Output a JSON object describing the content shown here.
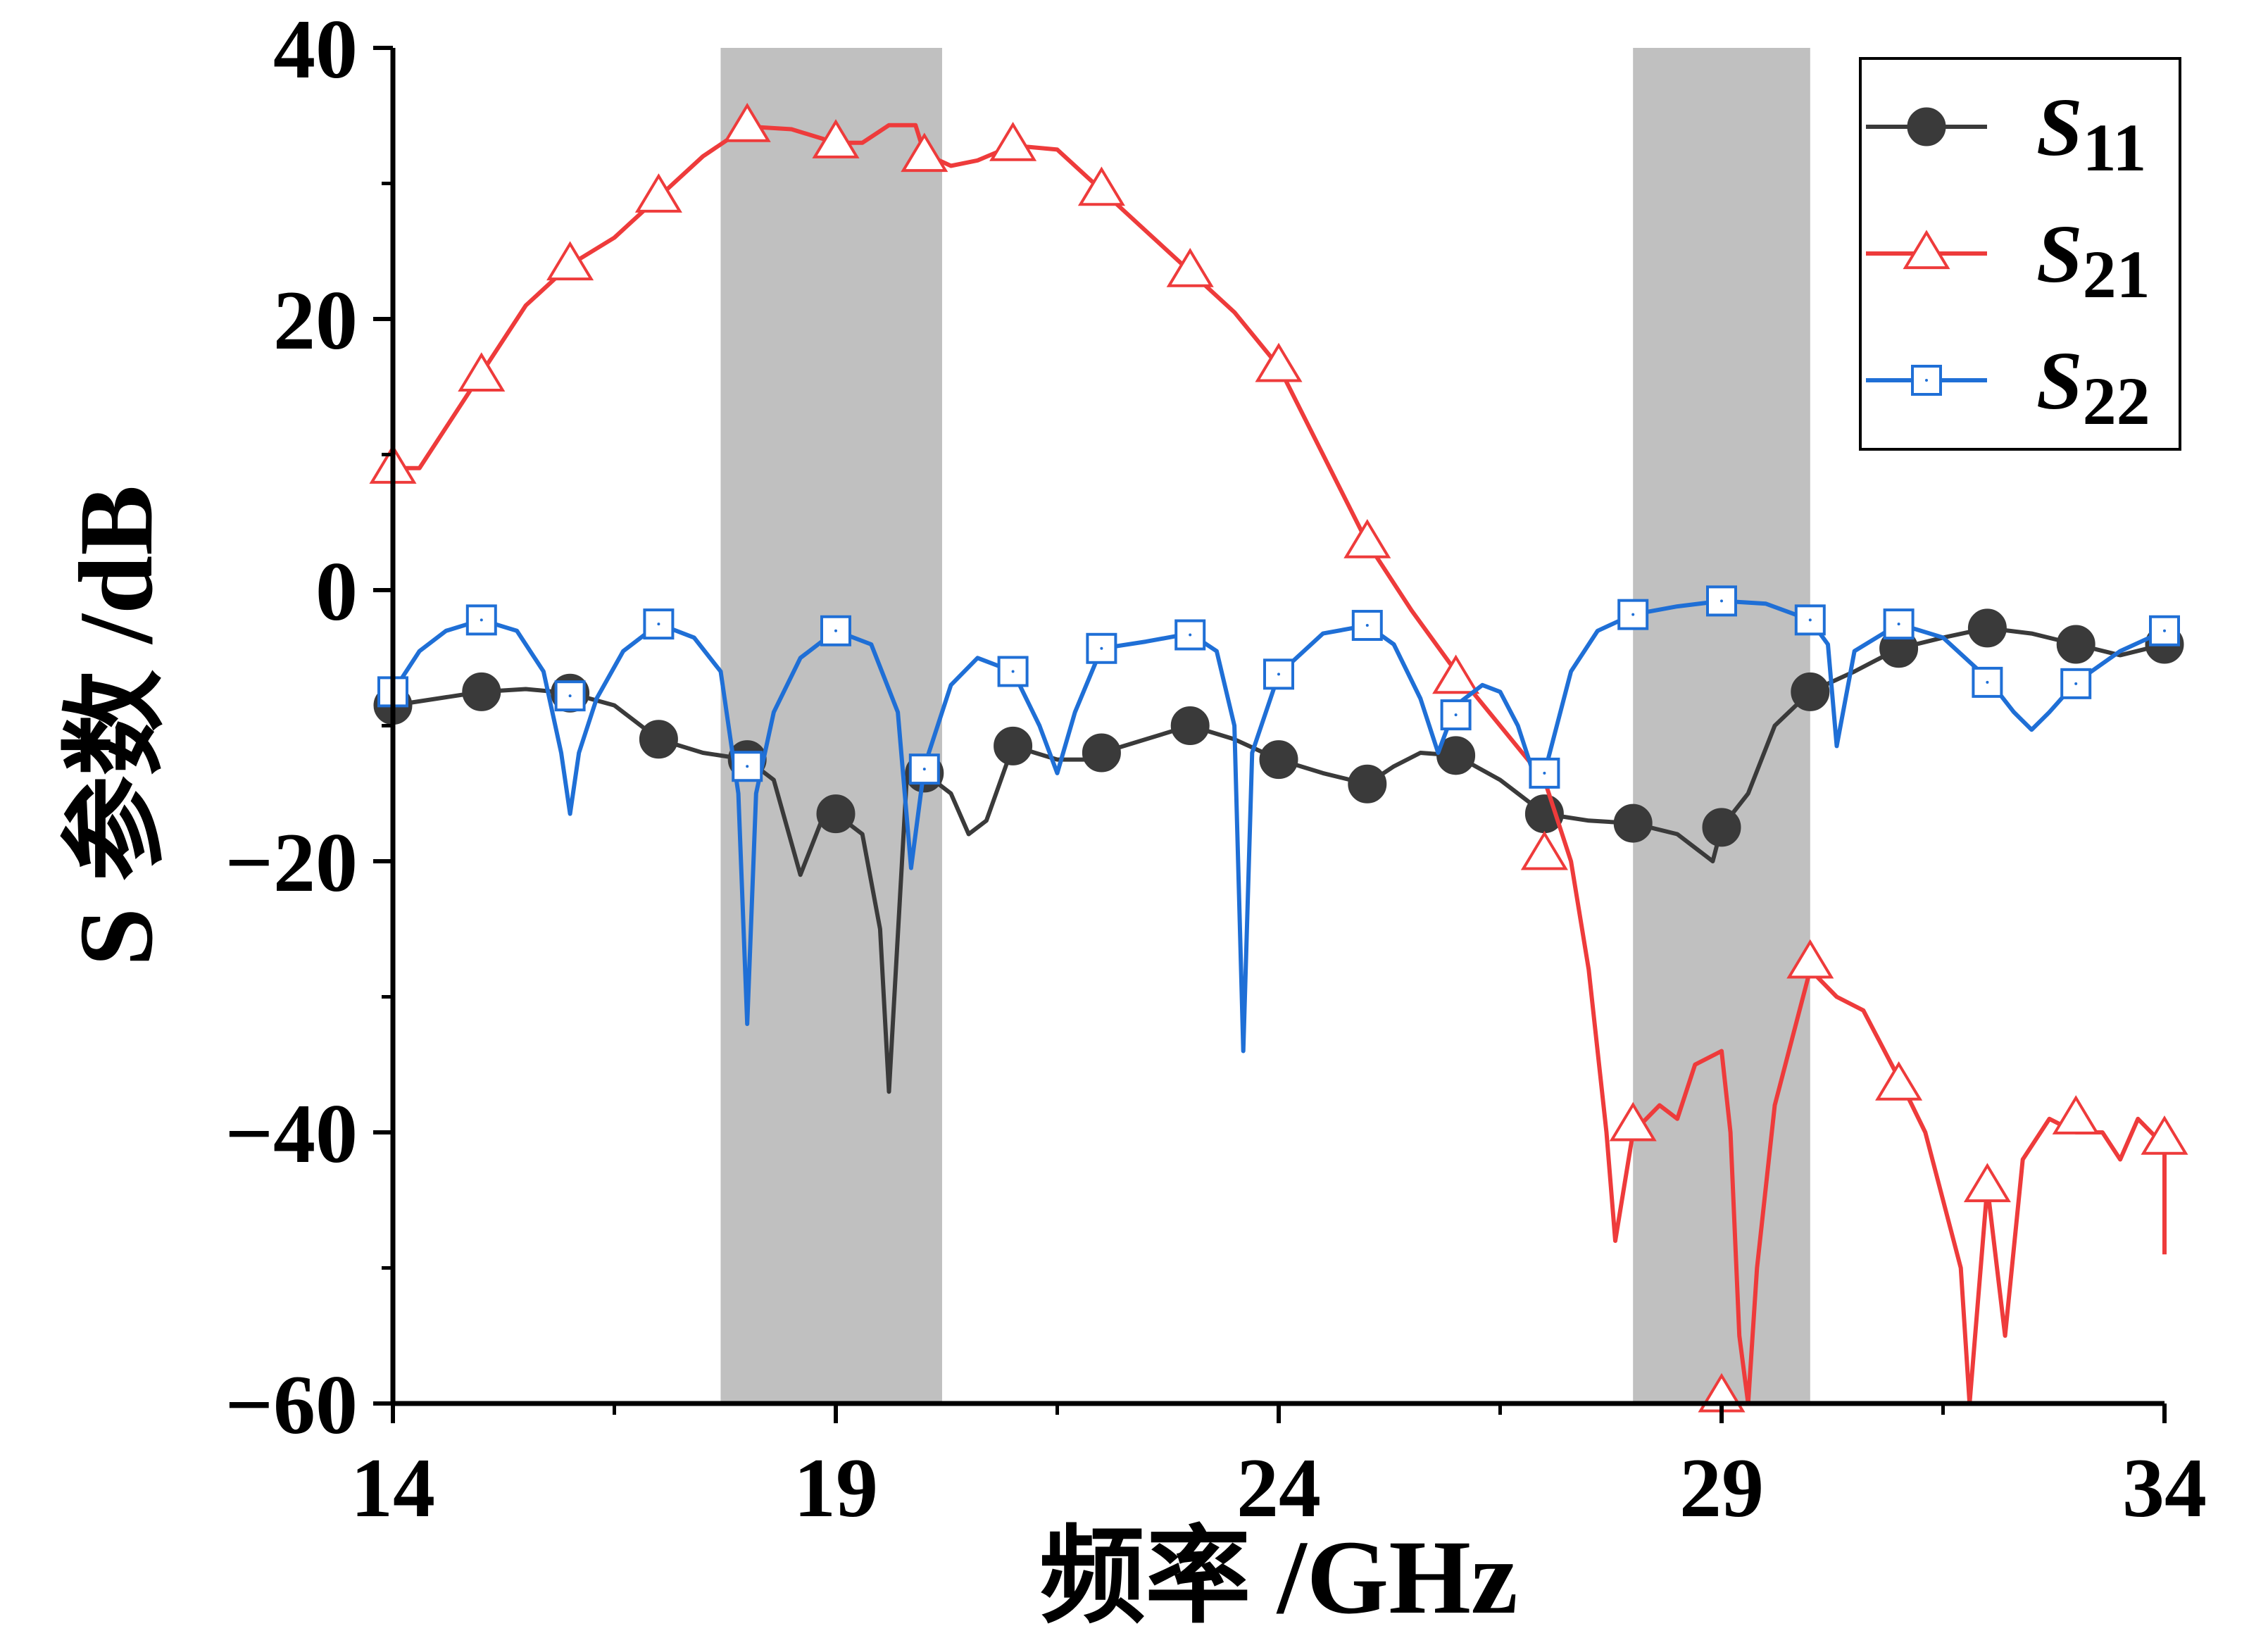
{
  "chart_data": {
    "type": "line",
    "xlabel": "频率 /GHz",
    "ylabel": "S 参数 /dB",
    "xlim": [
      14,
      34
    ],
    "ylim": [
      -60,
      40
    ],
    "xticks": [
      14,
      19,
      24,
      29,
      34
    ],
    "yticks": [
      40,
      20,
      0,
      -20,
      -40,
      -60
    ],
    "xtick_labels": [
      "14",
      "19",
      "24",
      "29",
      "34"
    ],
    "ytick_labels": [
      "40",
      "20",
      "0",
      "−20",
      "−40",
      "−60"
    ],
    "shaded_bands": [
      [
        17.7,
        20.2
      ],
      [
        28.0,
        30.0
      ]
    ],
    "band_color": "#c0c0c0",
    "grid": false,
    "legend_position": "top-right",
    "series": [
      {
        "name": "S11",
        "legend_main": "S",
        "legend_sub": "11",
        "color": "#3a3a3a",
        "marker": "filled-circle",
        "points": [
          [
            14,
            -8.5
          ],
          [
            14.5,
            -8
          ],
          [
            15,
            -7.5
          ],
          [
            15.5,
            -7.3
          ],
          [
            16,
            -7.6
          ],
          [
            16.5,
            -8.5
          ],
          [
            17,
            -11
          ],
          [
            17.5,
            -12
          ],
          [
            18,
            -12.5
          ],
          [
            18.3,
            -14
          ],
          [
            18.6,
            -21
          ],
          [
            18.9,
            -16
          ],
          [
            19,
            -16.5
          ],
          [
            19.3,
            -18
          ],
          [
            19.5,
            -25
          ],
          [
            19.6,
            -37
          ],
          [
            19.8,
            -14
          ],
          [
            20,
            -13.5
          ],
          [
            20.3,
            -15
          ],
          [
            20.5,
            -18
          ],
          [
            20.7,
            -17
          ],
          [
            21,
            -11.5
          ],
          [
            21.5,
            -12.5
          ],
          [
            21.8,
            -12.5
          ],
          [
            22,
            -12
          ],
          [
            22.5,
            -11
          ],
          [
            23,
            -10
          ],
          [
            23.5,
            -11
          ],
          [
            24,
            -12.5
          ],
          [
            24.5,
            -13.5
          ],
          [
            25,
            -14.3
          ],
          [
            25.3,
            -13
          ],
          [
            25.6,
            -12
          ],
          [
            26,
            -12.2
          ],
          [
            26.5,
            -14
          ],
          [
            27,
            -16.5
          ],
          [
            27.5,
            -17
          ],
          [
            28,
            -17.2
          ],
          [
            28.5,
            -18
          ],
          [
            28.9,
            -20
          ],
          [
            29,
            -17.5
          ],
          [
            29.3,
            -15
          ],
          [
            29.6,
            -10
          ],
          [
            30,
            -7.5
          ],
          [
            30.5,
            -6
          ],
          [
            31,
            -4.3
          ],
          [
            31.5,
            -3.5
          ],
          [
            32,
            -2.8
          ],
          [
            32.5,
            -3.2
          ],
          [
            33,
            -4
          ],
          [
            33.5,
            -4.8
          ],
          [
            34,
            -4
          ]
        ],
        "marker_x": [
          14,
          15,
          16,
          17,
          18,
          19,
          20,
          21,
          22,
          23,
          24,
          25,
          26,
          27,
          28,
          29,
          30,
          31,
          32,
          33,
          34
        ]
      },
      {
        "name": "S21",
        "legend_main": "S",
        "legend_sub": "21",
        "color": "#ee3b3b",
        "marker": "open-triangle",
        "points": [
          [
            14,
            9
          ],
          [
            14.3,
            9
          ],
          [
            14.6,
            12
          ],
          [
            15,
            16
          ],
          [
            15.5,
            21
          ],
          [
            16,
            24
          ],
          [
            16.5,
            26
          ],
          [
            17,
            29
          ],
          [
            17.5,
            32
          ],
          [
            18,
            34.2
          ],
          [
            18.5,
            34
          ],
          [
            19,
            33
          ],
          [
            19.3,
            33
          ],
          [
            19.6,
            34.3
          ],
          [
            19.9,
            34.3
          ],
          [
            20,
            32.2
          ],
          [
            20.3,
            31.3
          ],
          [
            20.6,
            31.7
          ],
          [
            21,
            32.8
          ],
          [
            21.5,
            32.5
          ],
          [
            22,
            29.5
          ],
          [
            22.5,
            26.5
          ],
          [
            23,
            23.5
          ],
          [
            23.5,
            20.5
          ],
          [
            24,
            16.5
          ],
          [
            24.5,
            10
          ],
          [
            25,
            3.5
          ],
          [
            25.5,
            -1.5
          ],
          [
            26,
            -6
          ],
          [
            26.5,
            -10
          ],
          [
            27,
            -14
          ],
          [
            27.3,
            -20
          ],
          [
            27.5,
            -28
          ],
          [
            27.7,
            -40
          ],
          [
            27.8,
            -48
          ],
          [
            28,
            -40
          ],
          [
            28.3,
            -38
          ],
          [
            28.5,
            -39
          ],
          [
            28.7,
            -35
          ],
          [
            29,
            -34
          ],
          [
            29.1,
            -40
          ],
          [
            29.2,
            -55
          ],
          [
            29.3,
            -60
          ],
          [
            29.4,
            -50
          ],
          [
            29.6,
            -38
          ],
          [
            29.8,
            -33
          ],
          [
            30,
            -28
          ],
          [
            30.3,
            -30
          ],
          [
            30.6,
            -31
          ],
          [
            31,
            -36
          ],
          [
            31.3,
            -40
          ],
          [
            31.5,
            -45
          ],
          [
            31.7,
            -50
          ],
          [
            31.8,
            -60
          ],
          [
            32,
            -44
          ],
          [
            32.2,
            -55
          ],
          [
            32.4,
            -42
          ],
          [
            32.7,
            -39
          ],
          [
            33,
            -40
          ],
          [
            33.3,
            -40
          ],
          [
            33.5,
            -42
          ],
          [
            33.7,
            -39
          ],
          [
            34,
            -41
          ],
          [
            34,
            -49
          ]
        ],
        "marker_x": [
          14,
          15,
          16,
          17,
          18,
          19,
          20,
          21,
          22,
          23,
          24,
          25,
          26,
          27,
          28,
          29,
          30,
          31,
          32,
          33,
          34
        ],
        "marker_y": [
          9,
          15.8,
          24,
          29,
          34.2,
          33,
          32,
          32.8,
          29.5,
          23.5,
          16.5,
          3.5,
          -6.5,
          -19.5,
          -39.5,
          -59.5,
          -27.5,
          -36.5,
          -44,
          -39,
          -40.5
        ]
      },
      {
        "name": "S22",
        "legend_main": "S",
        "legend_sub": "22",
        "color": "#1f6fd6",
        "marker": "open-square",
        "points": [
          [
            14,
            -7.5
          ],
          [
            14.3,
            -4.5
          ],
          [
            14.6,
            -3
          ],
          [
            15,
            -2.2
          ],
          [
            15.4,
            -3
          ],
          [
            15.7,
            -6
          ],
          [
            15.9,
            -12
          ],
          [
            16,
            -16.5
          ],
          [
            16.1,
            -12
          ],
          [
            16.3,
            -8
          ],
          [
            16.6,
            -4.5
          ],
          [
            17,
            -2.5
          ],
          [
            17.4,
            -3.5
          ],
          [
            17.7,
            -6
          ],
          [
            17.9,
            -15
          ],
          [
            18,
            -32
          ],
          [
            18.1,
            -15
          ],
          [
            18.3,
            -9
          ],
          [
            18.6,
            -5
          ],
          [
            19,
            -3
          ],
          [
            19.4,
            -4
          ],
          [
            19.7,
            -9
          ],
          [
            19.85,
            -20.5
          ],
          [
            20,
            -13
          ],
          [
            20.3,
            -7
          ],
          [
            20.6,
            -5
          ],
          [
            21,
            -6
          ],
          [
            21.3,
            -10
          ],
          [
            21.5,
            -13.5
          ],
          [
            21.7,
            -9
          ],
          [
            22,
            -4.3
          ],
          [
            22.5,
            -3.8
          ],
          [
            23,
            -3.2
          ],
          [
            23.3,
            -4.5
          ],
          [
            23.5,
            -10
          ],
          [
            23.6,
            -34
          ],
          [
            23.7,
            -12
          ],
          [
            24,
            -6.2
          ],
          [
            24.5,
            -3.2
          ],
          [
            25,
            -2.6
          ],
          [
            25.3,
            -4
          ],
          [
            25.6,
            -8
          ],
          [
            25.8,
            -12
          ],
          [
            26,
            -8.5
          ],
          [
            26.3,
            -7
          ],
          [
            26.5,
            -7.5
          ],
          [
            26.7,
            -10
          ],
          [
            26.9,
            -14
          ],
          [
            27,
            -13.5
          ],
          [
            27.3,
            -6
          ],
          [
            27.6,
            -3
          ],
          [
            28,
            -1.8
          ],
          [
            28.5,
            -1.2
          ],
          [
            29,
            -0.8
          ],
          [
            29.5,
            -1
          ],
          [
            30,
            -2.2
          ],
          [
            30.2,
            -4
          ],
          [
            30.3,
            -11.5
          ],
          [
            30.5,
            -4.5
          ],
          [
            31,
            -2.5
          ],
          [
            31.5,
            -3.5
          ],
          [
            32,
            -6.5
          ],
          [
            32.3,
            -9
          ],
          [
            32.5,
            -10.3
          ],
          [
            32.7,
            -9
          ],
          [
            33,
            -6.8
          ],
          [
            33.5,
            -4.5
          ],
          [
            34,
            -3
          ]
        ],
        "marker_x": [
          14,
          15,
          16,
          17,
          18,
          19,
          20,
          21,
          22,
          23,
          24,
          25,
          26,
          27,
          28,
          29,
          30,
          31,
          32,
          33,
          34
        ],
        "marker_y": [
          -7.5,
          -2.2,
          -7.8,
          -2.5,
          -13,
          -3,
          -13.2,
          -6,
          -4.3,
          -3.3,
          -6.2,
          -2.6,
          -9.2,
          -13.5,
          -1.8,
          -0.8,
          -2.2,
          -2.5,
          -6.8,
          -6.9,
          -3
        ]
      }
    ]
  }
}
